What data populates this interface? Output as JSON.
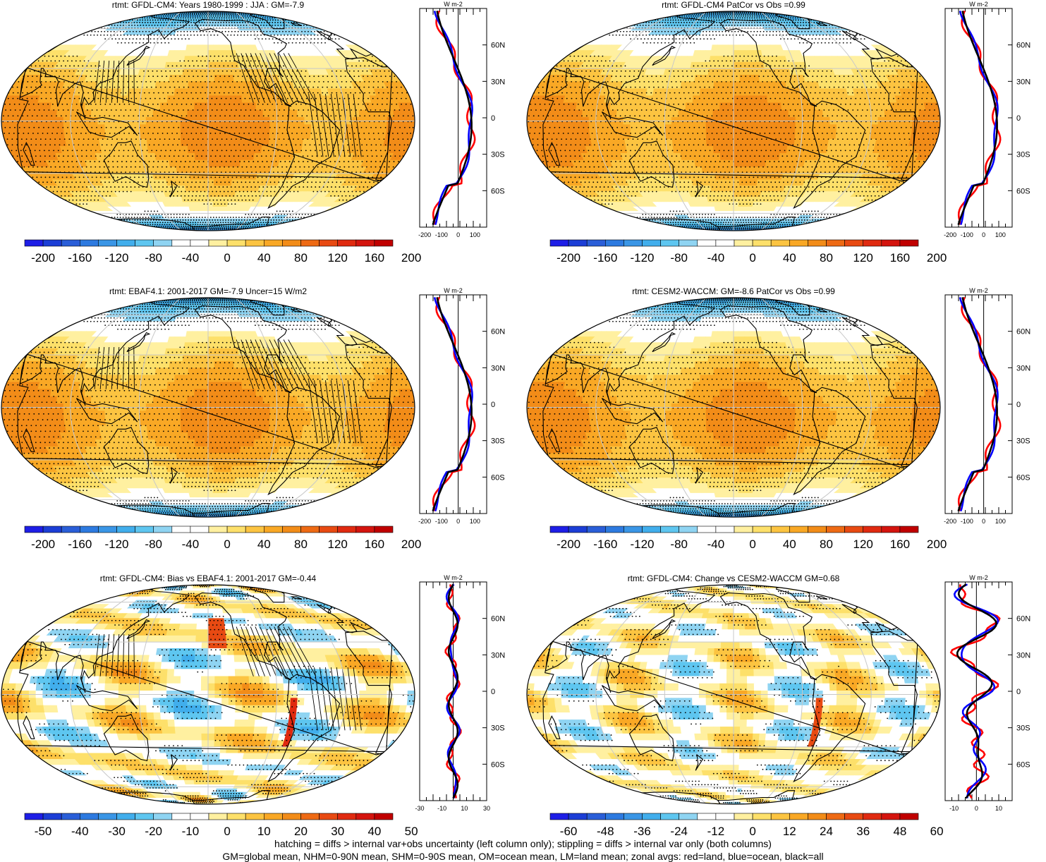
{
  "palettes": {
    "full": [
      "#1e1ee6",
      "#1c3ed6",
      "#2a5ed8",
      "#2d7ae0",
      "#3a96e6",
      "#41aeec",
      "#5ec6f0",
      "#8fd4f2",
      "#ffffff",
      "#ffffff",
      "#fff0a0",
      "#fde06a",
      "#fcc441",
      "#f9a825",
      "#f28c18",
      "#ee6a14",
      "#e84a12",
      "#e02a10",
      "#d4140e",
      "#c00000"
    ],
    "diff": [
      "#1e1ee6",
      "#1c3ed6",
      "#2a5ed8",
      "#2d7ae0",
      "#3a96e6",
      "#41aeec",
      "#5ec6f0",
      "#8fd4f2",
      "#ffffff",
      "#ffffff",
      "#fff0a0",
      "#fde06a",
      "#fcc441",
      "#f9a825",
      "#f28c18",
      "#ee6a14",
      "#e84a12",
      "#e02a10",
      "#d4140e",
      "#c00000"
    ]
  },
  "line_colors": {
    "land": "#ff0000",
    "ocean": "#0000ff",
    "all": "#000000"
  },
  "panels": [
    {
      "title": "rtmt: GFDL-CM4: Years 1980-1999 : JJA : GM=-7.9",
      "type": "mean",
      "hatch": true,
      "zonal_unit": "W m-2",
      "zonal_xticks": [
        "-200",
        "-100",
        "0",
        "100"
      ],
      "zonal_yticks": [
        "60N",
        "30N",
        "0",
        "30S",
        "60S"
      ],
      "cbar_labels": [
        "-200",
        "-160",
        "-120",
        "-80",
        "-40",
        "0",
        "40",
        "80",
        "120",
        "160",
        "200"
      ]
    },
    {
      "title": "rtmt: GFDL-CM4 PatCor vs Obs =0.99",
      "type": "mean",
      "hatch": false,
      "zonal_unit": "W m-2",
      "zonal_xticks": [
        "-200",
        "-100",
        "0",
        "100"
      ],
      "zonal_yticks": [
        "60N",
        "30N",
        "0",
        "30S",
        "60S"
      ],
      "cbar_labels": [
        "-200",
        "-160",
        "-120",
        "-80",
        "-40",
        "0",
        "40",
        "80",
        "120",
        "160",
        "200"
      ]
    },
    {
      "title": "rtmt: EBAF4.1: 2001-2017 GM=-7.9 Uncer=15 W/m2",
      "type": "mean",
      "hatch": true,
      "zonal_unit": "W m-2",
      "zonal_xticks": [
        "-200",
        "-100",
        "0",
        "100"
      ],
      "zonal_yticks": [
        "60N",
        "30N",
        "0",
        "30S",
        "60S"
      ],
      "cbar_labels": [
        "-200",
        "-160",
        "-120",
        "-80",
        "-40",
        "0",
        "40",
        "80",
        "120",
        "160",
        "200"
      ]
    },
    {
      "title": "rtmt: CESM2-WACCM: GM=-8.6 PatCor vs Obs =0.99",
      "type": "mean",
      "hatch": false,
      "zonal_unit": "W m-2",
      "zonal_xticks": [
        "-200",
        "-100",
        "0",
        "100"
      ],
      "zonal_yticks": [
        "60N",
        "30N",
        "0",
        "30S",
        "60S"
      ],
      "cbar_labels": [
        "-200",
        "-160",
        "-120",
        "-80",
        "-40",
        "0",
        "40",
        "80",
        "120",
        "160",
        "200"
      ]
    },
    {
      "title": "rtmt: GFDL-CM4: Bias vs EBAF4.1: 2001-2017 GM=-0.44",
      "type": "diff",
      "hatch": true,
      "zonal_unit": "W m-2",
      "zonal_xticks": [
        "-30",
        "-10",
        "10",
        "30"
      ],
      "zonal_yticks": [
        "60N",
        "30N",
        "0",
        "30S",
        "60S"
      ],
      "cbar_labels": [
        "-50",
        "-40",
        "-30",
        "-20",
        "-10",
        "0",
        "10",
        "20",
        "30",
        "40",
        "50"
      ]
    },
    {
      "title": "rtmt: GFDL-CM4: Change vs CESM2-WACCM GM=0.68",
      "type": "change",
      "hatch": false,
      "zonal_unit": "W m-2",
      "zonal_xticks": [
        "-10",
        "0",
        "10"
      ],
      "zonal_yticks": [
        "60N",
        "30N",
        "0",
        "30S",
        "60S"
      ],
      "cbar_labels": [
        "-60",
        "-48",
        "-36",
        "-24",
        "-12",
        "0",
        "12",
        "24",
        "36",
        "48",
        "60"
      ]
    }
  ],
  "caption": {
    "line1": "hatching = diffs > internal var+obs uncertainty (left column only); stippling = diffs > internal var only (both columns)",
    "line2": "GM=global mean, NHM=0-90N mean, SHM=0-90S mean, OM=ocean mean, LM=land mean; zonal avgs: red=land, blue=ocean, black=all"
  }
}
